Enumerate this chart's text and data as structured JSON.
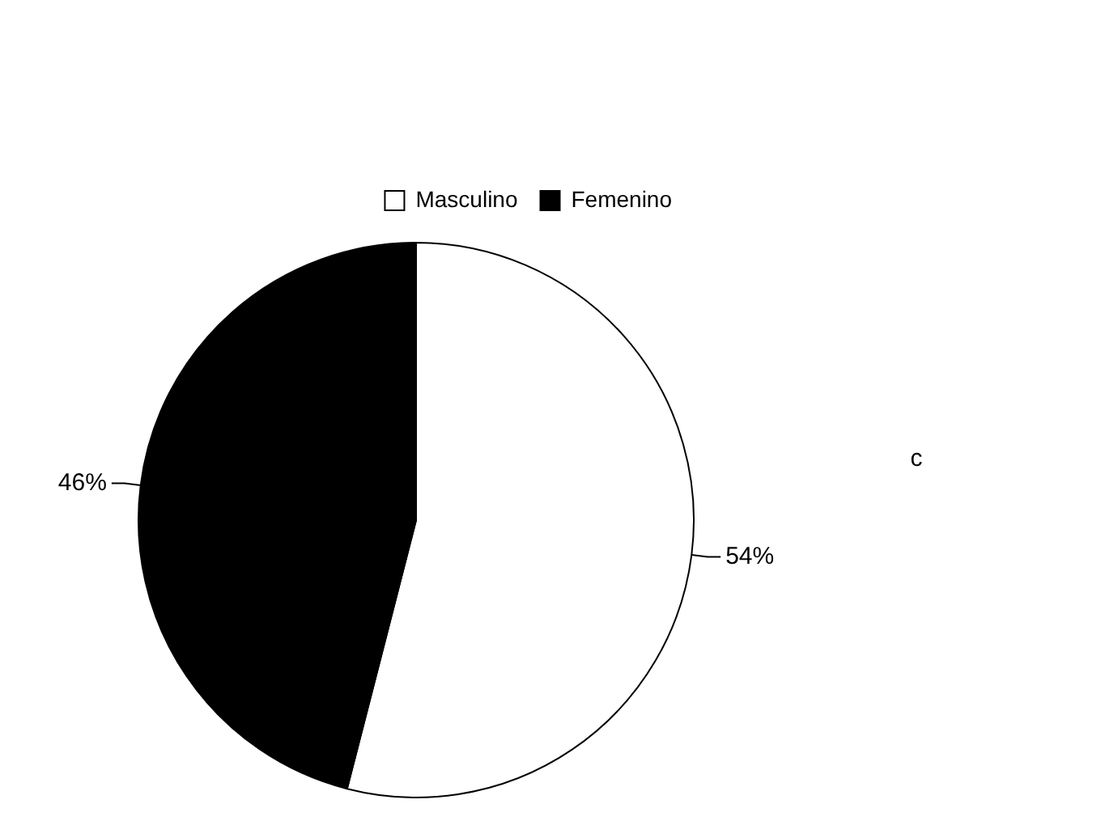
{
  "chart_data": {
    "type": "pie",
    "categories": [
      "Masculino",
      "Femenino"
    ],
    "values": [
      54,
      46
    ],
    "colors": [
      "#ffffff",
      "#000000"
    ],
    "value_labels": [
      "54%",
      "46%"
    ],
    "annotations": [
      "c"
    ],
    "legend": "top right"
  }
}
